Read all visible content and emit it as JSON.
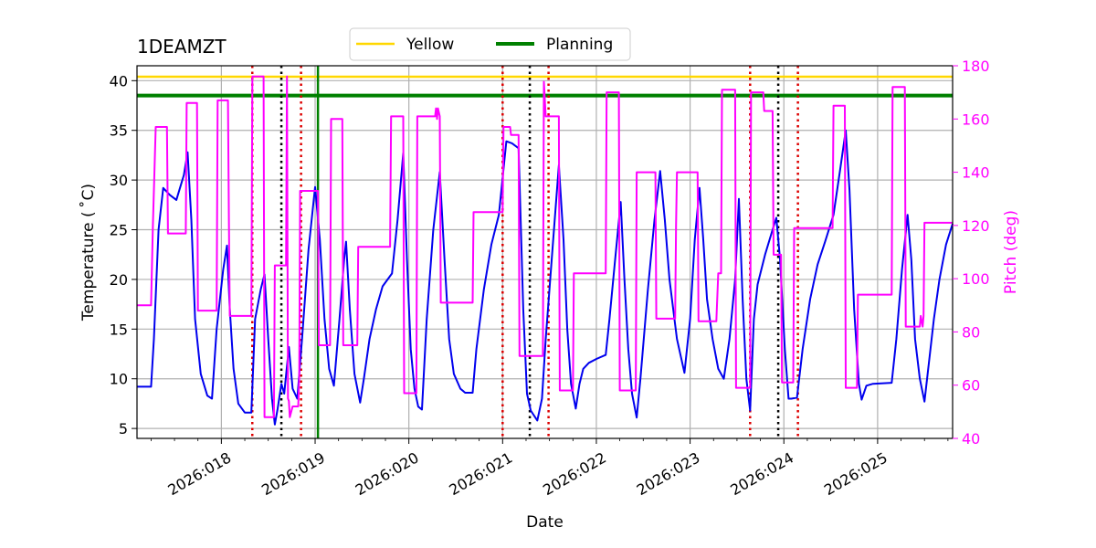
{
  "chart_data": {
    "type": "line",
    "title": "1DEAMZT",
    "xlabel": "Date",
    "ylabel": "Temperature ($^\\circ$C)",
    "ylabel_display": "Temperature ( ˚C)",
    "y2label": "Pitch (deg)",
    "xlim": [
      17.1,
      25.8
    ],
    "ylim": [
      4,
      41.5
    ],
    "y2lim": [
      40,
      180
    ],
    "grid": true,
    "legend_placement": "top-center",
    "x_ticks": [
      {
        "x": 18,
        "label": "2026:018"
      },
      {
        "x": 19,
        "label": "2026:019"
      },
      {
        "x": 20,
        "label": "2026:020"
      },
      {
        "x": 21,
        "label": "2026:021"
      },
      {
        "x": 22,
        "label": "2026:022"
      },
      {
        "x": 23,
        "label": "2026:023"
      },
      {
        "x": 24,
        "label": "2026:024"
      },
      {
        "x": 25,
        "label": "2026:025"
      }
    ],
    "y_ticks": [
      5,
      10,
      15,
      20,
      25,
      30,
      35,
      40
    ],
    "y2_ticks": [
      40,
      60,
      80,
      100,
      120,
      140,
      160,
      180
    ],
    "colors": {
      "temperature": "#0000ee",
      "pitch": "#ff00ff",
      "yellow_limit": "#ffd700",
      "planning_limit": "#008000",
      "red_marker": "#dd0000",
      "black_marker": "#000000",
      "green_marker": "#008000",
      "grid": "#b0b0b0"
    },
    "limit_lines": [
      {
        "name": "Yellow",
        "y": 40.4,
        "color": "#ffd700"
      },
      {
        "name": "Planning",
        "y": 38.5,
        "color": "#008000"
      }
    ],
    "legend": [
      {
        "label": "Yellow",
        "color": "#ffd700"
      },
      {
        "label": "Planning",
        "color": "#008000"
      }
    ],
    "vertical_markers": [
      {
        "x": 18.33,
        "color": "#dd0000"
      },
      {
        "x": 18.64,
        "color": "#000000"
      },
      {
        "x": 18.85,
        "color": "#dd0000"
      },
      {
        "x": 19.03,
        "color": "#008000",
        "style": "solid"
      },
      {
        "x": 21.0,
        "color": "#dd0000"
      },
      {
        "x": 21.29,
        "color": "#000000"
      },
      {
        "x": 21.49,
        "color": "#dd0000"
      },
      {
        "x": 23.64,
        "color": "#dd0000"
      },
      {
        "x": 23.94,
        "color": "#000000"
      },
      {
        "x": 24.15,
        "color": "#dd0000"
      }
    ],
    "series": [
      {
        "axis": "left",
        "color": "#0000ee",
        "points": [
          [
            17.1,
            9.2
          ],
          [
            17.25,
            9.2
          ],
          [
            17.28,
            14
          ],
          [
            17.33,
            25
          ],
          [
            17.38,
            29.2
          ],
          [
            17.45,
            28.5
          ],
          [
            17.52,
            28.0
          ],
          [
            17.6,
            30.5
          ],
          [
            17.64,
            32.8
          ],
          [
            17.68,
            26
          ],
          [
            17.72,
            16
          ],
          [
            17.78,
            10.5
          ],
          [
            17.85,
            8.3
          ],
          [
            17.9,
            8.0
          ],
          [
            17.95,
            15
          ],
          [
            18.02,
            21
          ],
          [
            18.06,
            23.4
          ],
          [
            18.09,
            17
          ],
          [
            18.13,
            11
          ],
          [
            18.18,
            7.5
          ],
          [
            18.25,
            6.6
          ],
          [
            18.32,
            6.6
          ],
          [
            18.36,
            16
          ],
          [
            18.42,
            19
          ],
          [
            18.46,
            20.5
          ],
          [
            18.5,
            14
          ],
          [
            18.54,
            8
          ],
          [
            18.57,
            5.4
          ],
          [
            18.6,
            7
          ],
          [
            18.64,
            9.5
          ],
          [
            18.67,
            8.5
          ],
          [
            18.72,
            13.2
          ],
          [
            18.76,
            9
          ],
          [
            18.81,
            8.0
          ],
          [
            18.86,
            14
          ],
          [
            18.93,
            23
          ],
          [
            19.0,
            29.3
          ],
          [
            19.05,
            24
          ],
          [
            19.1,
            16
          ],
          [
            19.15,
            11
          ],
          [
            19.2,
            9.3
          ],
          [
            19.26,
            16
          ],
          [
            19.31,
            22
          ],
          [
            19.33,
            23.8
          ],
          [
            19.37,
            17
          ],
          [
            19.42,
            10.5
          ],
          [
            19.48,
            7.6
          ],
          [
            19.52,
            10
          ],
          [
            19.58,
            14
          ],
          [
            19.65,
            17
          ],
          [
            19.72,
            19.3
          ],
          [
            19.82,
            20.6
          ],
          [
            19.88,
            26
          ],
          [
            19.94,
            32.7
          ],
          [
            19.98,
            22
          ],
          [
            20.02,
            13
          ],
          [
            20.06,
            9
          ],
          [
            20.1,
            7.2
          ],
          [
            20.14,
            6.9
          ],
          [
            20.19,
            16
          ],
          [
            20.26,
            25
          ],
          [
            20.33,
            30.8
          ],
          [
            20.38,
            22
          ],
          [
            20.43,
            14
          ],
          [
            20.48,
            10.5
          ],
          [
            20.55,
            9.0
          ],
          [
            20.6,
            8.6
          ],
          [
            20.68,
            8.6
          ],
          [
            20.72,
            13
          ],
          [
            20.8,
            19
          ],
          [
            20.88,
            23.5
          ],
          [
            20.96,
            26.5
          ],
          [
            21.04,
            33.9
          ],
          [
            21.1,
            33.7
          ],
          [
            21.17,
            33.2
          ],
          [
            21.22,
            17
          ],
          [
            21.26,
            8.5
          ],
          [
            21.3,
            6.8
          ],
          [
            21.37,
            5.8
          ],
          [
            21.42,
            8
          ],
          [
            21.46,
            14
          ],
          [
            21.54,
            24
          ],
          [
            21.6,
            31.5
          ],
          [
            21.65,
            24
          ],
          [
            21.69,
            15
          ],
          [
            21.73,
            9.5
          ],
          [
            21.78,
            7.0
          ],
          [
            21.82,
            9.5
          ],
          [
            21.86,
            11
          ],
          [
            21.92,
            11.6
          ],
          [
            22.0,
            12.0
          ],
          [
            22.1,
            12.4
          ],
          [
            22.14,
            16
          ],
          [
            22.2,
            22
          ],
          [
            22.26,
            27.8
          ],
          [
            22.3,
            20
          ],
          [
            22.34,
            13
          ],
          [
            22.38,
            8.5
          ],
          [
            22.43,
            6.1
          ],
          [
            22.47,
            10
          ],
          [
            22.55,
            19
          ],
          [
            22.62,
            26
          ],
          [
            22.68,
            30.9
          ],
          [
            22.73,
            26
          ],
          [
            22.78,
            20
          ],
          [
            22.86,
            14
          ],
          [
            22.94,
            10.6
          ],
          [
            23.0,
            16
          ],
          [
            23.05,
            24
          ],
          [
            23.1,
            29.2
          ],
          [
            23.14,
            24
          ],
          [
            23.18,
            18
          ],
          [
            23.24,
            14
          ],
          [
            23.3,
            11
          ],
          [
            23.36,
            10.0
          ],
          [
            23.42,
            14
          ],
          [
            23.48,
            20
          ],
          [
            23.52,
            28.1
          ],
          [
            23.56,
            18
          ],
          [
            23.6,
            10
          ],
          [
            23.64,
            6.8
          ],
          [
            23.68,
            16
          ],
          [
            23.72,
            19.5
          ],
          [
            23.8,
            22.5
          ],
          [
            23.88,
            25
          ],
          [
            23.92,
            26.2
          ],
          [
            23.96,
            22
          ],
          [
            24.01,
            13
          ],
          [
            24.05,
            8.0
          ],
          [
            24.08,
            8.0
          ],
          [
            24.14,
            8.1
          ],
          [
            24.2,
            13
          ],
          [
            24.28,
            18
          ],
          [
            24.36,
            21.5
          ],
          [
            24.44,
            23.8
          ],
          [
            24.53,
            26.5
          ],
          [
            24.6,
            31
          ],
          [
            24.66,
            35
          ],
          [
            24.7,
            29
          ],
          [
            24.75,
            17
          ],
          [
            24.8,
            9.5
          ],
          [
            24.83,
            7.9
          ],
          [
            24.88,
            9.3
          ],
          [
            24.95,
            9.5
          ],
          [
            25.15,
            9.6
          ],
          [
            25.2,
            14
          ],
          [
            25.26,
            21
          ],
          [
            25.32,
            26.5
          ],
          [
            25.36,
            22
          ],
          [
            25.4,
            14
          ],
          [
            25.45,
            10
          ],
          [
            25.5,
            7.7
          ],
          [
            25.54,
            11
          ],
          [
            25.6,
            16
          ],
          [
            25.66,
            20
          ],
          [
            25.73,
            23.5
          ],
          [
            25.8,
            25.6
          ]
        ]
      },
      {
        "axis": "right",
        "color": "#ff00ff",
        "points": [
          [
            17.1,
            90
          ],
          [
            17.25,
            90
          ],
          [
            17.27,
            120
          ],
          [
            17.3,
            157
          ],
          [
            17.42,
            157
          ],
          [
            17.43,
            117
          ],
          [
            17.62,
            117
          ],
          [
            17.63,
            166
          ],
          [
            17.74,
            166
          ],
          [
            17.75,
            88
          ],
          [
            17.95,
            88
          ],
          [
            17.96,
            167
          ],
          [
            18.07,
            167
          ],
          [
            18.08,
            123
          ],
          [
            18.09,
            86
          ],
          [
            18.32,
            86
          ],
          [
            18.33,
            176
          ],
          [
            18.45,
            176
          ],
          [
            18.46,
            48
          ],
          [
            18.56,
            48
          ],
          [
            18.57,
            105
          ],
          [
            18.69,
            105
          ],
          [
            18.7,
            176
          ],
          [
            18.71,
            55
          ],
          [
            18.72,
            54
          ],
          [
            18.73,
            48
          ],
          [
            18.76,
            52
          ],
          [
            18.82,
            52
          ],
          [
            18.83,
            62
          ],
          [
            18.84,
            133
          ],
          [
            19.0,
            133
          ],
          [
            19.03,
            133
          ],
          [
            19.04,
            75
          ],
          [
            19.16,
            75
          ],
          [
            19.17,
            160
          ],
          [
            19.29,
            160
          ],
          [
            19.3,
            75
          ],
          [
            19.45,
            75
          ],
          [
            19.46,
            112
          ],
          [
            19.8,
            112
          ],
          [
            19.81,
            161
          ],
          [
            19.94,
            161
          ],
          [
            19.95,
            57
          ],
          [
            20.08,
            57
          ],
          [
            20.09,
            161
          ],
          [
            20.28,
            161
          ],
          [
            20.29,
            164
          ],
          [
            20.3,
            160
          ],
          [
            20.31,
            164
          ],
          [
            20.33,
            161
          ],
          [
            20.34,
            91
          ],
          [
            20.68,
            91
          ],
          [
            20.69,
            125
          ],
          [
            21.0,
            125
          ],
          [
            21.01,
            157
          ],
          [
            21.08,
            157
          ],
          [
            21.09,
            154
          ],
          [
            21.17,
            154
          ],
          [
            21.18,
            71
          ],
          [
            21.43,
            71
          ],
          [
            21.44,
            174
          ],
          [
            21.46,
            161
          ],
          [
            21.6,
            161
          ],
          [
            21.61,
            58
          ],
          [
            21.75,
            58
          ],
          [
            21.76,
            102
          ],
          [
            22.1,
            102
          ],
          [
            22.11,
            170
          ],
          [
            22.24,
            170
          ],
          [
            22.25,
            58
          ],
          [
            22.42,
            58
          ],
          [
            22.43,
            140
          ],
          [
            22.63,
            140
          ],
          [
            22.64,
            85
          ],
          [
            22.84,
            85
          ],
          [
            22.85,
            120
          ],
          [
            22.86,
            140
          ],
          [
            23.08,
            140
          ],
          [
            23.09,
            84
          ],
          [
            23.28,
            84
          ],
          [
            23.3,
            102
          ],
          [
            23.33,
            102
          ],
          [
            23.34,
            171
          ],
          [
            23.48,
            171
          ],
          [
            23.49,
            59
          ],
          [
            23.64,
            59
          ],
          [
            23.65,
            170
          ],
          [
            23.78,
            170
          ],
          [
            23.79,
            163
          ],
          [
            23.88,
            163
          ],
          [
            23.89,
            109
          ],
          [
            23.97,
            109
          ],
          [
            23.98,
            61
          ],
          [
            24.1,
            61
          ],
          [
            24.11,
            119
          ],
          [
            24.52,
            119
          ],
          [
            24.53,
            165
          ],
          [
            24.65,
            165
          ],
          [
            24.66,
            59
          ],
          [
            24.78,
            59
          ],
          [
            24.79,
            94
          ],
          [
            25.15,
            94
          ],
          [
            25.16,
            172
          ],
          [
            25.29,
            172
          ],
          [
            25.3,
            82
          ],
          [
            25.45,
            82
          ],
          [
            25.46,
            86
          ],
          [
            25.48,
            82
          ],
          [
            25.49,
            86
          ],
          [
            25.5,
            121
          ],
          [
            25.8,
            121
          ]
        ]
      }
    ]
  }
}
